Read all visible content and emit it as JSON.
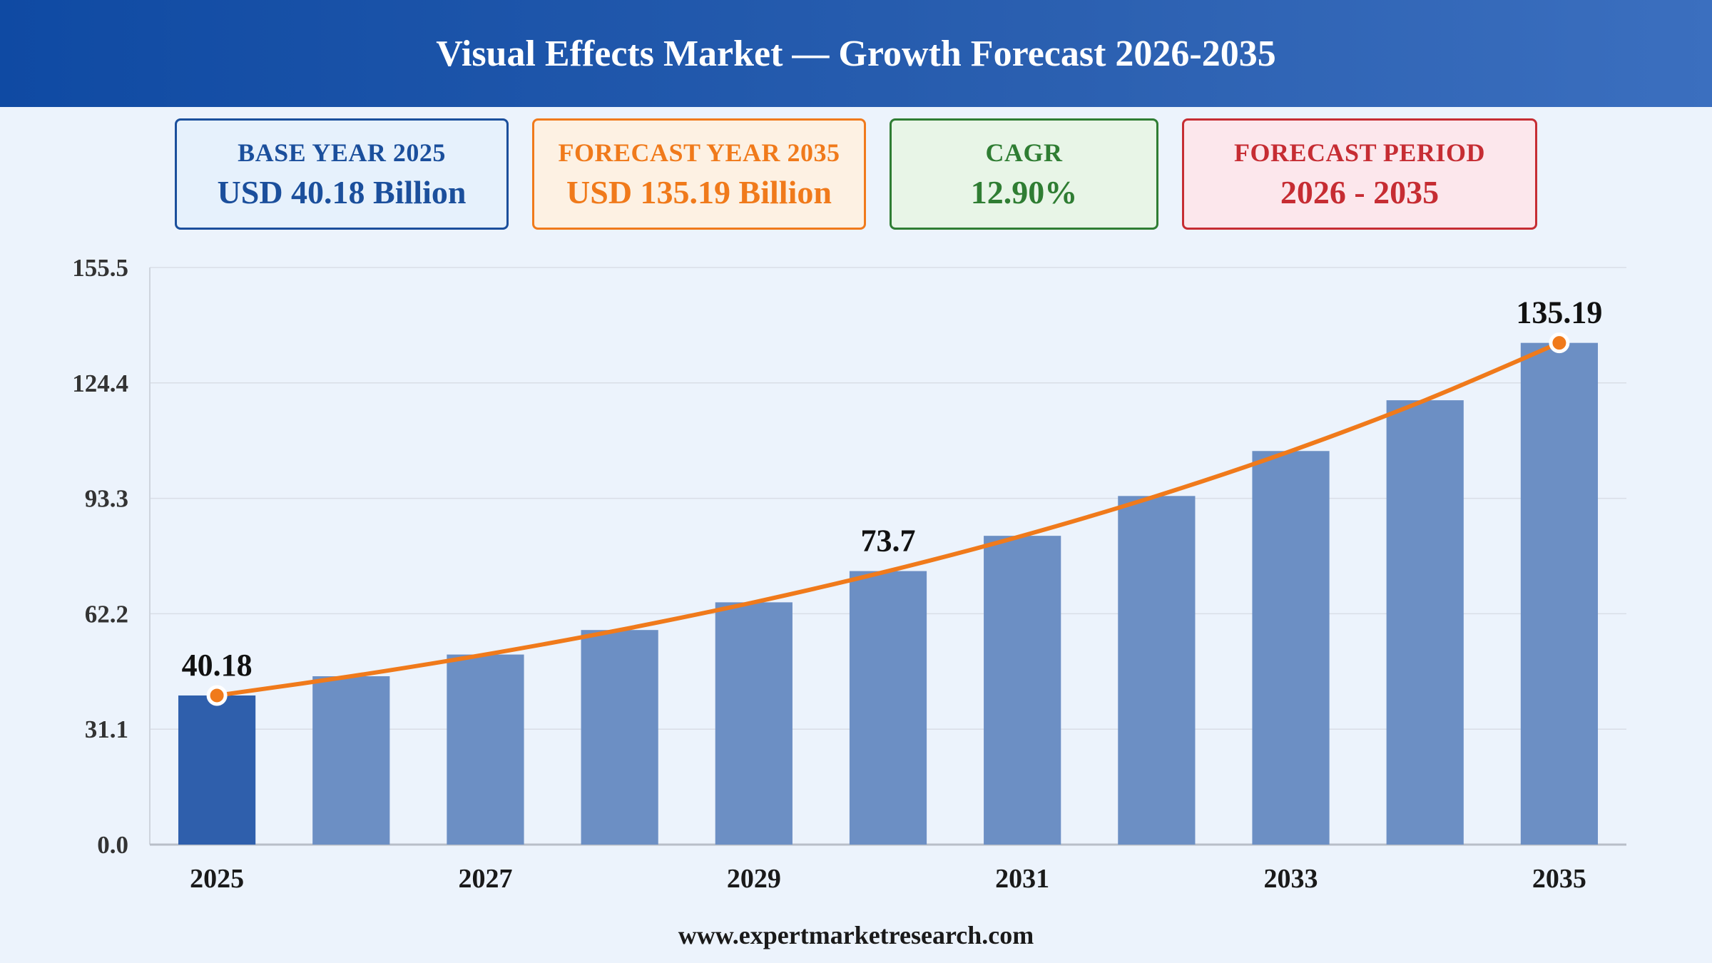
{
  "header": {
    "title": "Visual Effects Market — Growth Forecast 2026-2035"
  },
  "cards": {
    "base": {
      "label": "BASE YEAR 2025",
      "value": "USD 40.18 Billion"
    },
    "forecast": {
      "label": "FORECAST YEAR 2035",
      "value": "USD 135.19 Billion"
    },
    "cagr": {
      "label": "CAGR",
      "value": "12.90%"
    },
    "period": {
      "label": "FORECAST PERIOD",
      "value": "2026 - 2035"
    }
  },
  "colors": {
    "base_bar": "#2f5fac",
    "bar": "#6c8fc4",
    "line": "#f07a1b",
    "grid": "#d9dee6",
    "axis_text": "#333333"
  },
  "chart_data": {
    "type": "bar",
    "categories": [
      "2025",
      "2026",
      "2027",
      "2028",
      "2029",
      "2030",
      "2031",
      "2032",
      "2033",
      "2034",
      "2035"
    ],
    "values": [
      40.18,
      45.36,
      51.21,
      57.82,
      65.28,
      73.7,
      83.2,
      93.93,
      106.05,
      119.73,
      135.19
    ],
    "series": [
      {
        "type": "bar",
        "values": [
          40.18,
          45.36,
          51.21,
          57.82,
          65.28,
          73.7,
          83.2,
          93.93,
          106.05,
          119.73,
          135.19
        ]
      },
      {
        "type": "line",
        "values": [
          40.18,
          45.36,
          51.21,
          57.82,
          65.28,
          73.7,
          83.2,
          93.93,
          106.05,
          119.73,
          135.19
        ]
      }
    ],
    "x_tick_labels": [
      "2025",
      "",
      "2027",
      "",
      "2029",
      "",
      "2031",
      "",
      "2033",
      "",
      "2035"
    ],
    "y_ticks": [
      "0.0",
      "31.1",
      "62.2",
      "93.3",
      "124.4",
      "155.5"
    ],
    "ylim": [
      0,
      155.5
    ],
    "data_labels": [
      {
        "index": 0,
        "text": "40.18"
      },
      {
        "index": 5,
        "text": "73.7"
      },
      {
        "index": 10,
        "text": "135.19"
      }
    ],
    "marker_indices": [
      0,
      10
    ],
    "highlight_index": 0,
    "grid": true,
    "xlabel": "",
    "ylabel": ""
  },
  "footer": {
    "source": "www.expertmarketresearch.com"
  }
}
